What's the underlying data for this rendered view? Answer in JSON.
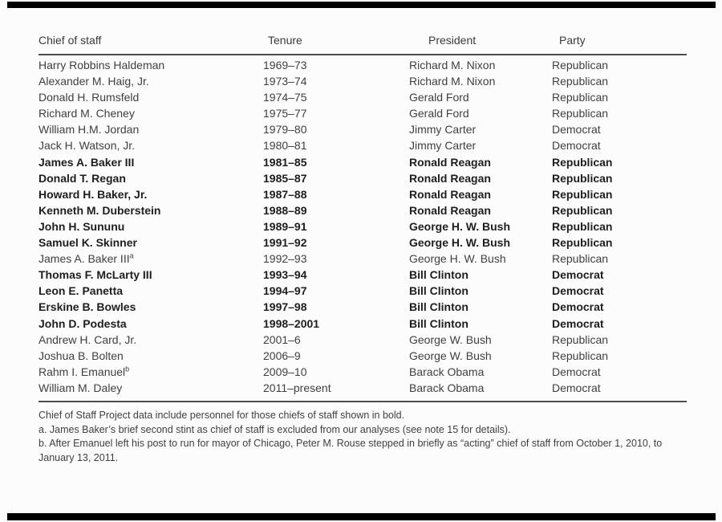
{
  "table": {
    "columns": [
      "Chief of staff",
      "Tenure",
      "President",
      "Party"
    ],
    "rows": [
      {
        "chief": "Harry Robbins Haldeman",
        "sup": "",
        "tenure": "1969–73",
        "president": "Richard M. Nixon",
        "party": "Republican",
        "bold": false
      },
      {
        "chief": "Alexander M. Haig, Jr.",
        "sup": "",
        "tenure": "1973–74",
        "president": "Richard M. Nixon",
        "party": "Republican",
        "bold": false
      },
      {
        "chief": "Donald H. Rumsfeld",
        "sup": "",
        "tenure": "1974–75",
        "president": "Gerald Ford",
        "party": "Republican",
        "bold": false
      },
      {
        "chief": "Richard M. Cheney",
        "sup": "",
        "tenure": "1975–77",
        "president": "Gerald Ford",
        "party": "Republican",
        "bold": false
      },
      {
        "chief": "William H.M. Jordan",
        "sup": "",
        "tenure": "1979–80",
        "president": "Jimmy Carter",
        "party": "Democrat",
        "bold": false
      },
      {
        "chief": "Jack H. Watson, Jr.",
        "sup": "",
        "tenure": "1980–81",
        "president": "Jimmy Carter",
        "party": "Democrat",
        "bold": false
      },
      {
        "chief": "James A. Baker III",
        "sup": "",
        "tenure": "1981–85",
        "president": "Ronald Reagan",
        "party": "Republican",
        "bold": true
      },
      {
        "chief": "Donald T. Regan",
        "sup": "",
        "tenure": "1985–87",
        "president": "Ronald Reagan",
        "party": "Republican",
        "bold": true
      },
      {
        "chief": "Howard H. Baker, Jr.",
        "sup": "",
        "tenure": "1987–88",
        "president": "Ronald Reagan",
        "party": "Republican",
        "bold": true
      },
      {
        "chief": "Kenneth M. Duberstein",
        "sup": "",
        "tenure": "1988–89",
        "president": "Ronald Reagan",
        "party": "Republican",
        "bold": true
      },
      {
        "chief": "John H. Sununu",
        "sup": "",
        "tenure": "1989–91",
        "president": "George H. W. Bush",
        "party": "Republican",
        "bold": true
      },
      {
        "chief": "Samuel K. Skinner",
        "sup": "",
        "tenure": "1991–92",
        "president": "George H. W. Bush",
        "party": "Republican",
        "bold": true
      },
      {
        "chief": "James A. Baker III",
        "sup": "a",
        "tenure": "1992–93",
        "president": "George H. W. Bush",
        "party": "Republican",
        "bold": false
      },
      {
        "chief": "Thomas F. McLarty III",
        "sup": "",
        "tenure": "1993–94",
        "president": "Bill Clinton",
        "party": "Democrat",
        "bold": true
      },
      {
        "chief": "Leon E. Panetta",
        "sup": "",
        "tenure": "1994–97",
        "president": "Bill Clinton",
        "party": "Democrat",
        "bold": true
      },
      {
        "chief": "Erskine B. Bowles",
        "sup": "",
        "tenure": "1997–98",
        "president": "Bill Clinton",
        "party": "Democrat",
        "bold": true
      },
      {
        "chief": "John D. Podesta",
        "sup": "",
        "tenure": "1998–2001",
        "president": "Bill Clinton",
        "party": "Democrat",
        "bold": true
      },
      {
        "chief": "Andrew H. Card, Jr.",
        "sup": "",
        "tenure": "2001–6",
        "president": "George W. Bush",
        "party": "Republican",
        "bold": false
      },
      {
        "chief": "Joshua B. Bolten",
        "sup": "",
        "tenure": "2006–9",
        "president": "George W. Bush",
        "party": "Republican",
        "bold": false
      },
      {
        "chief": "Rahm I. Emanuel",
        "sup": "b",
        "tenure": "2009–10",
        "president": "Barack Obama",
        "party": "Democrat",
        "bold": false
      },
      {
        "chief": "William M. Daley",
        "sup": "",
        "tenure": "2011–present",
        "president": "Barack Obama",
        "party": "Democrat",
        "bold": false
      }
    ]
  },
  "footnotes": [
    "Chief of Staff Project data include personnel for those chiefs of staff shown in bold.",
    "a. James Baker’s brief second stint as chief of staff is excluded from our analyses (see note 15 for details).",
    "b. After Emanuel left his post to run for mayor of Chicago, Peter M. Rouse stepped in briefly as “acting” chief of staff from October 1, 2010, to January 13, 2011."
  ],
  "colors": {
    "background": "#fcfcfc",
    "bar": "#000000",
    "rule": "#4d4d4d",
    "text_regular": "#3f3f3f",
    "text_bold": "#1e1e1e"
  }
}
